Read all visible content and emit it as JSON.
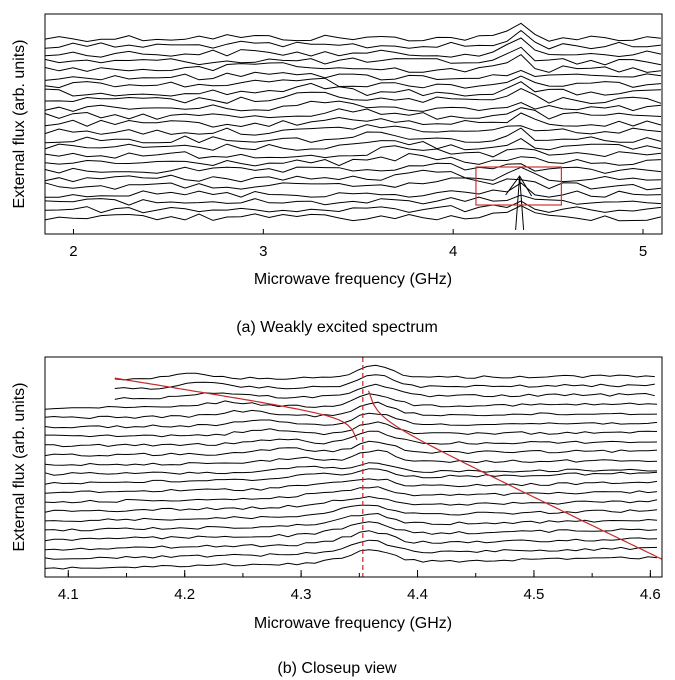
{
  "chart_data": [
    {
      "type": "line",
      "panel": "a",
      "caption": "(a) Weakly excited spectrum",
      "xlabel": "Microwave frequency (GHz)",
      "ylabel": "External flux (arb. units)",
      "xlim": [
        1.85,
        5.1
      ],
      "x_ticks": [
        2,
        3,
        4,
        5
      ],
      "x_tick_labels": [
        "2",
        "3",
        "4",
        "5"
      ],
      "n_traces": 24,
      "features": {
        "resonance_peak_GHz": 4.35,
        "secondary_ridge_start_GHz": 2.8,
        "secondary_ridge_end_GHz": 4.3,
        "highlight_box_x_GHz": [
          4.12,
          4.57
        ],
        "highlight_box_color": "#d43030"
      },
      "grid": false,
      "legend": "none"
    },
    {
      "type": "line",
      "panel": "b",
      "caption": "(b) Closeup view",
      "xlabel": "Microwave frequency (GHz)",
      "ylabel": "External flux (arb. units)",
      "xlim": [
        4.08,
        4.61
      ],
      "x_ticks": [
        4.1,
        4.2,
        4.3,
        4.4,
        4.5,
        4.6
      ],
      "x_tick_labels": [
        "4.1",
        "4.2",
        "4.3",
        "4.4",
        "4.5",
        "4.6"
      ],
      "n_traces": 21,
      "features": {
        "resonance_GHz": 4.353,
        "lower_branch_start_GHz": 4.14,
        "upper_branch_end_GHz": 4.61,
        "fit_curve_color": "#c42a2a",
        "dashed_line_color": "#c42a2a"
      },
      "grid": false,
      "legend": "none"
    }
  ]
}
